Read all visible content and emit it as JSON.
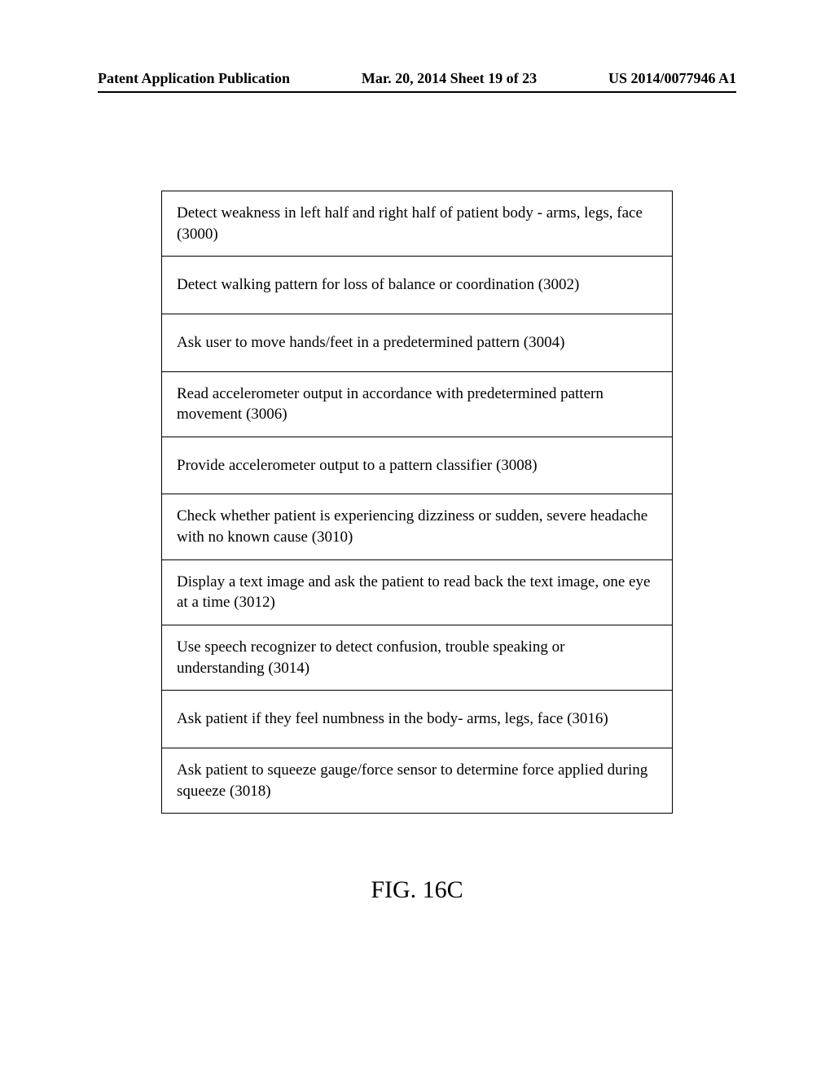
{
  "header": {
    "left": "Patent Application Publication",
    "center": "Mar. 20, 2014  Sheet 19 of 23",
    "right": "US 2014/0077946 A1"
  },
  "steps": [
    {
      "text": "Detect weakness in left half and right half of patient body - arms, legs, face (3000)",
      "single": false
    },
    {
      "text": "Detect walking pattern for loss of balance or coordination (3002)",
      "single": true
    },
    {
      "text": "Ask user to move hands/feet in a predetermined pattern (3004)",
      "single": true
    },
    {
      "text": "Read accelerometer output in accordance with predetermined pattern movement (3006)",
      "single": false
    },
    {
      "text": "Provide accelerometer output to a pattern classifier (3008)",
      "single": true
    },
    {
      "text": "Check whether patient is experiencing dizziness or sudden, severe headache with no known cause (3010)",
      "single": false
    },
    {
      "text": "Display a text image and ask the patient to read back the text image, one eye at a time (3012)",
      "single": false
    },
    {
      "text": "Use speech recognizer to detect confusion, trouble speaking or understanding (3014)",
      "single": false
    },
    {
      "text": "Ask patient if they feel numbness in the body- arms, legs, face (3016)",
      "single": true
    },
    {
      "text": "Ask patient to squeeze gauge/force sensor to determine force applied during squeeze (3018)",
      "single": false
    }
  ],
  "figure_label": "FIG. 16C",
  "colors": {
    "background": "#ffffff",
    "text": "#000000",
    "border": "#000000"
  },
  "typography": {
    "body_font": "Times New Roman",
    "header_fontsize": 18,
    "step_fontsize": 19,
    "figure_fontsize": 30
  }
}
